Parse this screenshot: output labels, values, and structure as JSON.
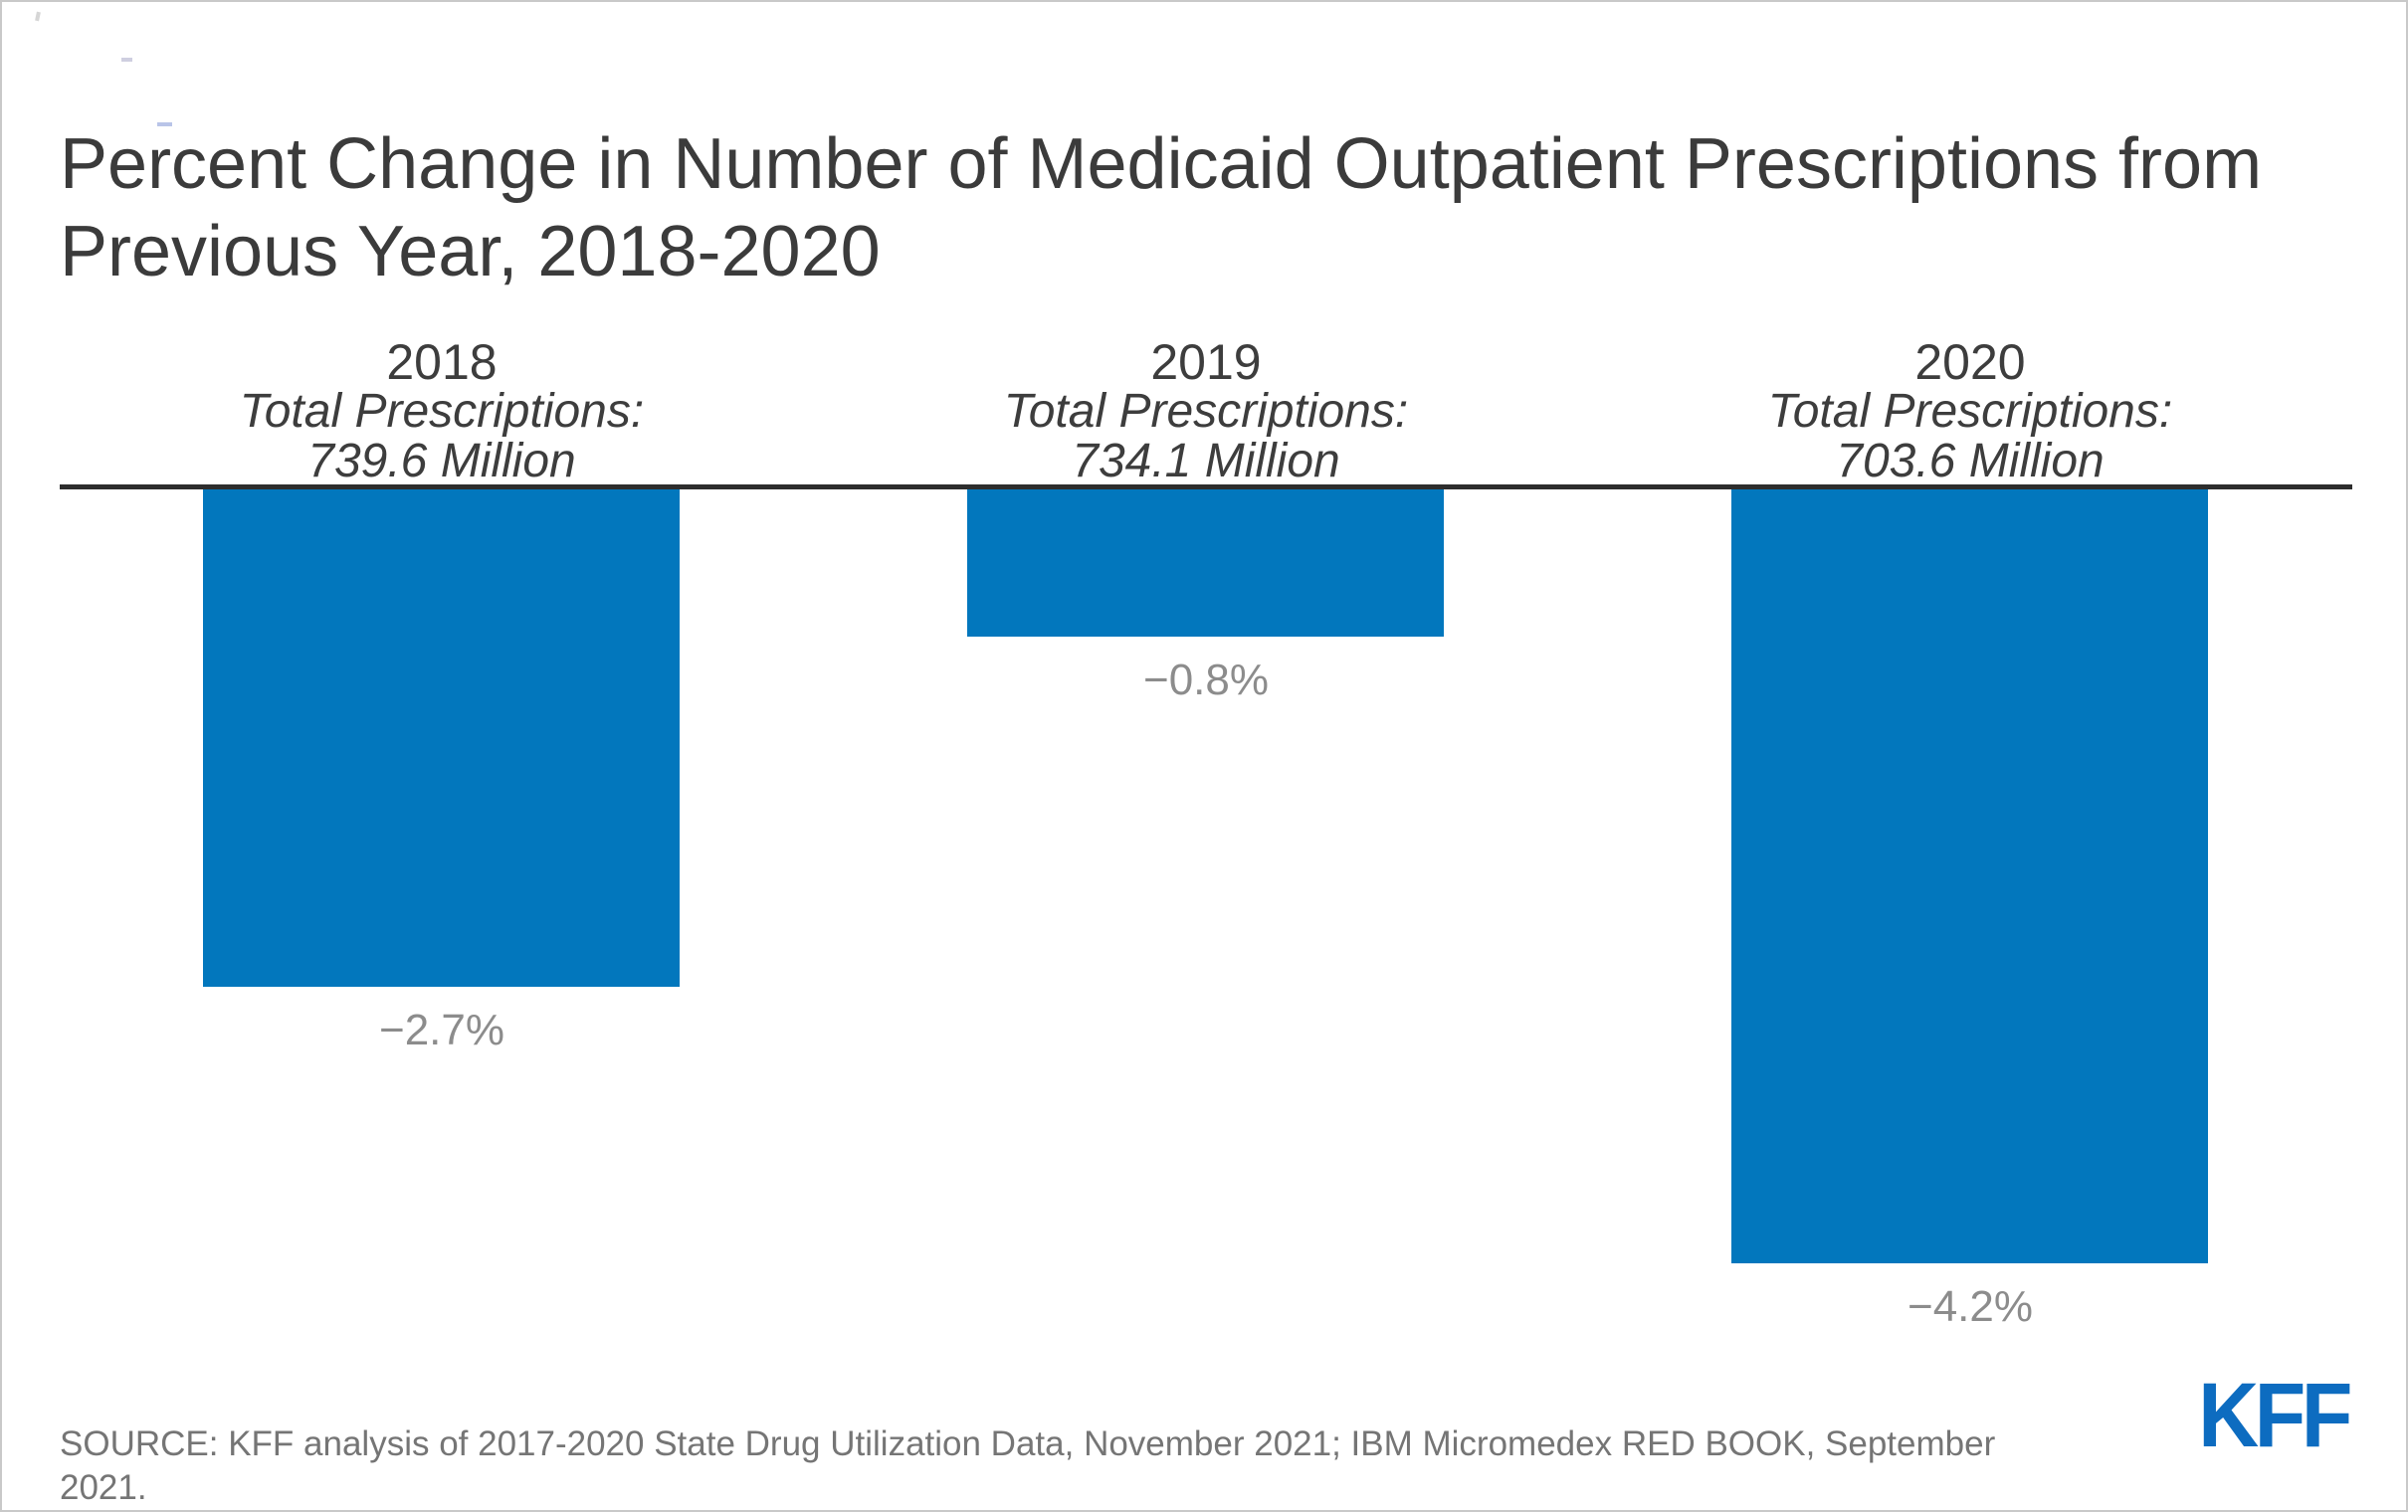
{
  "page": {
    "title_line1": "Percent Change in Number of Medicaid Outpatient Prescriptions from",
    "title_line2": "Previous Year, 2018-2020",
    "source": "SOURCE: KFF analysis of 2017-2020 State Drug Utilization Data, November 2021; IBM Micromedex RED BOOK, September 2021.",
    "logo_text": "KFF"
  },
  "colors": {
    "bar": "#0277bd",
    "logo": "#0d6cc0",
    "title_text": "#3b3b3b",
    "header_text": "#3d3d3d",
    "value_label": "#8c8c8c",
    "source_text": "#757575",
    "axis": "#2d2d2d"
  },
  "chart_data": {
    "type": "bar",
    "title": "Percent Change in Number of Medicaid Outpatient Prescriptions from Previous Year, 2018-2020",
    "categories": [
      "2018",
      "2019",
      "2020"
    ],
    "values": [
      -2.7,
      -0.8,
      -4.2
    ],
    "unit": "percent change from previous year",
    "ylim": [
      -4.5,
      0
    ],
    "xlabel": "",
    "ylabel": "",
    "gridlines": false,
    "legend": false,
    "axis_style": "single top baseline at 0%, bars extend downward (negative values)",
    "columns": [
      {
        "year": "2018",
        "subtitle": "Total Prescriptions:",
        "total": "739.6 Million",
        "label": "−2.7%",
        "value": -2.7
      },
      {
        "year": "2019",
        "subtitle": "Total Prescriptions:",
        "total": "734.1 Million",
        "label": "−0.8%",
        "value": -0.8
      },
      {
        "year": "2020",
        "subtitle": "Total Prescriptions:",
        "total": "703.6 Million",
        "label": "−4.2%",
        "value": -4.2
      }
    ]
  }
}
